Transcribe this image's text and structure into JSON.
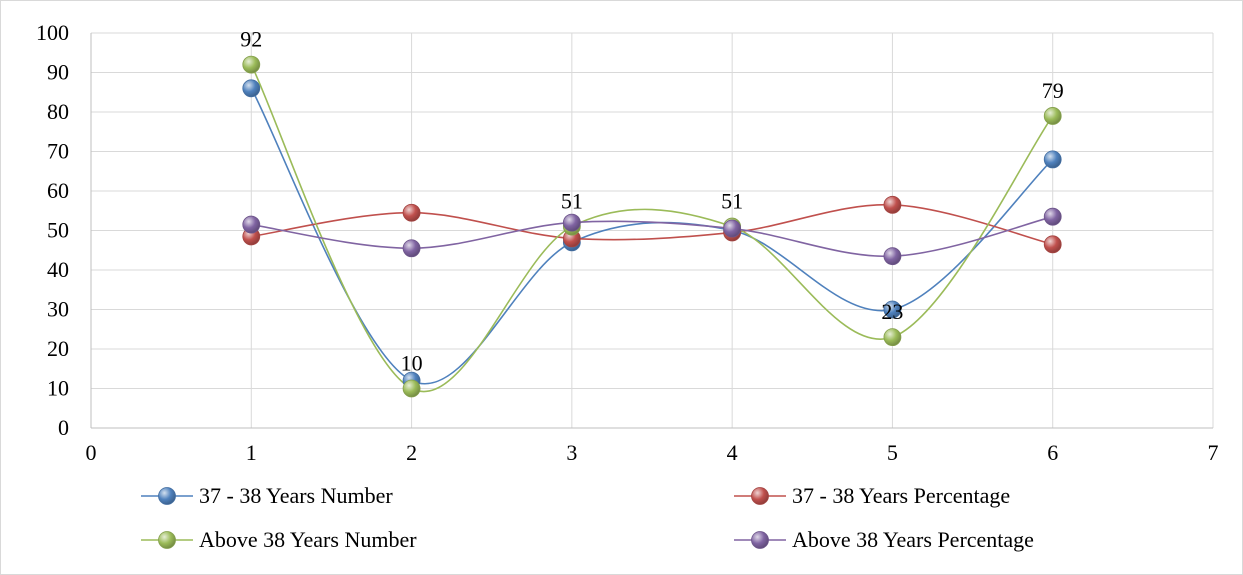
{
  "chart_data": {
    "type": "scatter",
    "title": "",
    "xlabel": "",
    "ylabel": "",
    "xlim": [
      0,
      7
    ],
    "ylim": [
      0,
      100
    ],
    "x_ticks": [
      0,
      1,
      2,
      3,
      4,
      5,
      6,
      7
    ],
    "y_ticks": [
      0,
      10,
      20,
      30,
      40,
      50,
      60,
      70,
      80,
      90,
      100
    ],
    "grid": true,
    "smooth_lines": true,
    "legend_position": "bottom",
    "series": [
      {
        "name": "37 - 38 Years Number",
        "color": "#4f81bd",
        "x": [
          1,
          2,
          3,
          4,
          5,
          6
        ],
        "y": [
          86,
          12,
          47,
          50,
          30,
          68
        ]
      },
      {
        "name": "37 - 38 Years Percentage",
        "color": "#c0504d",
        "x": [
          1,
          2,
          3,
          4,
          5,
          6
        ],
        "y": [
          48.5,
          54.5,
          48,
          49.5,
          56.5,
          46.5
        ]
      },
      {
        "name": "Above 38 Years Number",
        "color": "#9bbb59",
        "x": [
          1,
          2,
          3,
          4,
          5,
          6
        ],
        "y": [
          92,
          10,
          51,
          51,
          23,
          79
        ]
      },
      {
        "name": "Above 38 Years Percentage",
        "color": "#8064a2",
        "x": [
          1,
          2,
          3,
          4,
          5,
          6
        ],
        "y": [
          51.5,
          45.5,
          52,
          50.5,
          43.5,
          53.5
        ]
      }
    ],
    "data_labels": [
      {
        "series": "Above 38 Years Number",
        "x": 1,
        "text": "92"
      },
      {
        "series": "Above 38 Years Number",
        "x": 2,
        "text": "10"
      },
      {
        "series": "Above 38 Years Number",
        "x": 3,
        "text": "51"
      },
      {
        "series": "Above 38 Years Number",
        "x": 4,
        "text": "51"
      },
      {
        "series": "Above 38 Years Number",
        "x": 5,
        "text": "23"
      },
      {
        "series": "Above 38 Years Number",
        "x": 6,
        "text": "79"
      }
    ]
  }
}
